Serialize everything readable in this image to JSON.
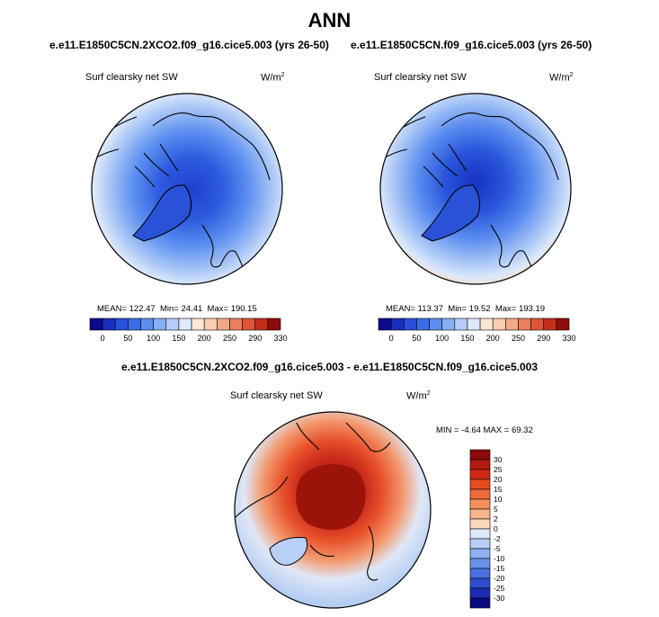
{
  "title": "ANN",
  "panels": [
    {
      "case": "e.e11.E1850C5CN.2XCO2.f09_g16.cice5.003 (yrs 26-50)",
      "variable": "Surf clearsky net SW",
      "units_base": "W/m",
      "units_exp": "2",
      "mean_label": "MEAN=",
      "mean": "122.47",
      "min_label": "Min=",
      "min": "24.41",
      "max_label": "Max=",
      "max": "190.15"
    },
    {
      "case": "e.e11.E1850C5CN.f09_g16.cice5.003 (yrs 26-50)",
      "variable": "Surf clearsky net SW",
      "units_base": "W/m",
      "units_exp": "2",
      "mean_label": "MEAN=",
      "mean": "113.37",
      "min_label": "Min=",
      "min": "19.52",
      "max_label": "Max=",
      "max": "193.19"
    }
  ],
  "diff": {
    "case": "e.e11.E1850C5CN.2XCO2.f09_g16.cice5.003 - e.e11.E1850C5CN.f09_g16.cice5.003",
    "variable": "Surf clearsky net SW",
    "units_base": "W/m",
    "units_exp": "2",
    "min_label": "MIN =",
    "min": "-4.64",
    "max_label": "MAX =",
    "max": "69.32"
  },
  "abs_colorbar": {
    "colors": [
      "#0a0a8c",
      "#1a2ebd",
      "#2850d8",
      "#3a6ee6",
      "#5d8ef0",
      "#86aef4",
      "#b5cdf8",
      "#deeafc",
      "#fbe7d6",
      "#f8cdb0",
      "#f3a886",
      "#ec7f5b",
      "#e0553a",
      "#c52e1c",
      "#8c0d0a"
    ],
    "ticks": [
      "0",
      "50",
      "100",
      "150",
      "200",
      "250",
      "290",
      "330"
    ]
  },
  "diff_colorbar": {
    "colors": [
      "#8c0a0a",
      "#b51a0f",
      "#d02a14",
      "#e84a22",
      "#f06a3a",
      "#f4905e",
      "#f8b48c",
      "#fbd9c0",
      "#dce8fa",
      "#b8cff5",
      "#8eb1ef",
      "#6a92e8",
      "#4a70df",
      "#2e4fd0",
      "#1a2cb0",
      "#0a0a80"
    ],
    "ticks": [
      "30",
      "25",
      "20",
      "15",
      "10",
      "5",
      "2",
      "0",
      "-2",
      "-5",
      "-10",
      "-15",
      "-20",
      "-25",
      "-30"
    ]
  }
}
